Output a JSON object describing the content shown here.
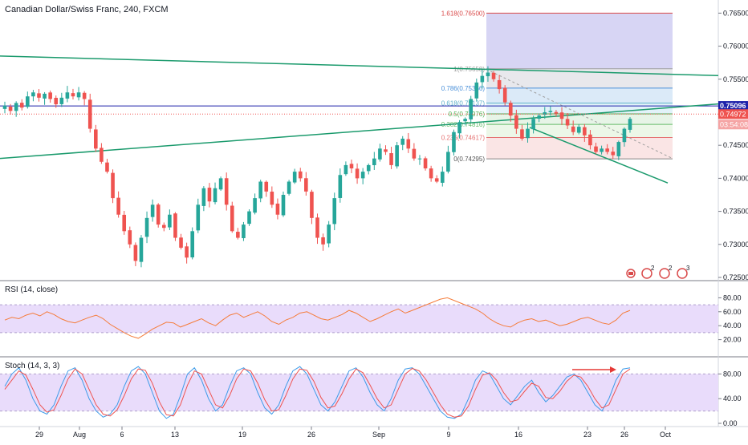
{
  "header": {
    "title": "Canadian Dollar/Swiss Franc, 240, FXCM"
  },
  "price_axis": {
    "ticks": [
      "0.76500",
      "0.76000",
      "0.75500",
      "0.75000",
      "0.74500",
      "0.74000",
      "0.73500",
      "0.73000",
      "0.72500"
    ],
    "current_price": "0.74972",
    "line_price": "0.75096",
    "countdown": "03:54:08"
  },
  "time_axis": {
    "ticks": [
      "29",
      "Aug",
      "6",
      "13",
      "19",
      "26",
      "Sep",
      "9",
      "16",
      "23",
      "26",
      "Oct"
    ]
  },
  "rsi_panel": {
    "label": "RSI (14, close)",
    "ticks": [
      "80.00",
      "60.00",
      "40.00",
      "20.00"
    ]
  },
  "stoch_panel": {
    "label": "Stoch (14, 3, 3)",
    "ticks": [
      "80.00",
      "40.00",
      "0.00"
    ]
  },
  "fib_levels": [
    {
      "label": "1.618(0.76500)"
    },
    {
      "label": "1(0.75658)"
    },
    {
      "label": "0.786(0.75366)"
    },
    {
      "label": "0.618(0.75137)"
    },
    {
      "label": "0.5(0.74976)"
    },
    {
      "label": "0.382(0.74816)"
    },
    {
      "label": "0.236(0.74617)"
    },
    {
      "label": "0(0.74295)"
    }
  ],
  "event_badges": [
    "2",
    "2",
    "3"
  ],
  "colors": {
    "up": "#26a69a",
    "down": "#ef5350",
    "blue_line": "#1e22aa",
    "trendline": "#1a9a6c",
    "rsi": "#f57c3a",
    "stoch_k": "#3d9be9",
    "stoch_d": "#ef5350",
    "panel_band": "#e9dcfb"
  },
  "chart_data": {
    "type": "candlestick",
    "instrument": "Canadian Dollar/Swiss Franc",
    "timeframe": "240",
    "ylim": [
      0.725,
      0.7665
    ],
    "fibonacci": [
      {
        "ratio": 1.618,
        "price": 0.765
      },
      {
        "ratio": 1,
        "price": 0.75658
      },
      {
        "ratio": 0.786,
        "price": 0.75366
      },
      {
        "ratio": 0.618,
        "price": 0.75137
      },
      {
        "ratio": 0.5,
        "price": 0.74976
      },
      {
        "ratio": 0.382,
        "price": 0.74816
      },
      {
        "ratio": 0.236,
        "price": 0.74617
      },
      {
        "ratio": 0,
        "price": 0.74295
      }
    ],
    "path_points": [
      [
        0.751,
        0.7502,
        0.7514,
        0.7507,
        0.7524,
        0.753,
        0.7522,
        0.7528,
        0.752,
        0.7512,
        0.7522,
        0.753,
        0.7524,
        0.753,
        0.752,
        0.7475,
        0.7445,
        0.7425,
        0.741,
        0.737,
        0.7345,
        0.732,
        0.73,
        0.7275,
        0.731,
        0.734,
        0.736,
        0.733,
        0.7325,
        0.7345,
        0.731,
        0.7295,
        0.728,
        0.732,
        0.736,
        0.7385,
        0.7365,
        0.7385,
        0.74,
        0.736,
        0.732,
        0.731,
        0.733,
        0.735,
        0.737,
        0.7395,
        0.738,
        0.736,
        0.7345,
        0.7375,
        0.7395,
        0.741,
        0.74,
        0.738,
        0.734,
        0.731,
        0.73,
        0.733,
        0.737,
        0.7405,
        0.742,
        0.7415,
        0.74,
        0.741,
        0.742,
        0.743,
        0.7445,
        0.744,
        0.742,
        0.745,
        0.746,
        0.7445,
        0.743,
        0.743,
        0.7415,
        0.74,
        0.7395,
        0.741,
        0.744,
        0.747,
        0.7485,
        0.749,
        0.752,
        0.7545,
        0.7555,
        0.756,
        0.755,
        0.7535,
        0.7515,
        0.7495,
        0.7475,
        0.746,
        0.7475,
        0.749,
        0.7495,
        0.75,
        0.7502,
        0.7498,
        0.749,
        0.748,
        0.747,
        0.7478,
        0.7465,
        0.745,
        0.744,
        0.7445,
        0.744,
        0.7435,
        0.7455,
        0.7475,
        0.749
      ]
    ],
    "rsi": {
      "ylim": [
        0,
        100
      ],
      "bands": [
        30,
        70
      ],
      "values": [
        48,
        52,
        50,
        55,
        58,
        54,
        60,
        56,
        50,
        46,
        44,
        48,
        52,
        55,
        50,
        42,
        36,
        30,
        25,
        22,
        28,
        35,
        40,
        45,
        44,
        38,
        42,
        46,
        50,
        44,
        40,
        48,
        55,
        58,
        52,
        56,
        60,
        54,
        46,
        42,
        48,
        52,
        58,
        60,
        55,
        50,
        48,
        52,
        56,
        62,
        58,
        52,
        46,
        50,
        55,
        60,
        64,
        58,
        62,
        66,
        70,
        74,
        78,
        80,
        76,
        72,
        68,
        64,
        58,
        50,
        44,
        40,
        38,
        44,
        48,
        50,
        46,
        48,
        44,
        40,
        42,
        46,
        50,
        52,
        48,
        44,
        42,
        48,
        58,
        62
      ]
    },
    "stochastic": {
      "ylim": [
        0,
        100
      ],
      "bands": [
        20,
        80
      ],
      "k": [
        60,
        80,
        90,
        70,
        40,
        20,
        15,
        30,
        60,
        85,
        90,
        70,
        40,
        20,
        10,
        15,
        30,
        60,
        85,
        92,
        80,
        50,
        20,
        8,
        15,
        45,
        80,
        90,
        70,
        40,
        20,
        30,
        60,
        85,
        90,
        80,
        50,
        25,
        15,
        30,
        60,
        85,
        92,
        80,
        55,
        30,
        20,
        35,
        60,
        85,
        90,
        75,
        50,
        30,
        20,
        40,
        70,
        88,
        90,
        80,
        60,
        40,
        20,
        10,
        8,
        15,
        40,
        70,
        85,
        80,
        60,
        40,
        30,
        45,
        60,
        70,
        50,
        35,
        45,
        60,
        75,
        80,
        70,
        50,
        30,
        20,
        40,
        70,
        88,
        90
      ],
      "d": [
        55,
        70,
        85,
        78,
        55,
        30,
        18,
        22,
        45,
        72,
        88,
        80,
        55,
        30,
        15,
        12,
        22,
        45,
        72,
        88,
        86,
        65,
        35,
        14,
        12,
        30,
        62,
        85,
        80,
        55,
        30,
        25,
        45,
        72,
        88,
        85,
        65,
        38,
        20,
        22,
        45,
        72,
        88,
        86,
        68,
        42,
        25,
        28,
        48,
        72,
        88,
        82,
        62,
        40,
        25,
        30,
        55,
        80,
        89,
        85,
        70,
        50,
        30,
        15,
        10,
        12,
        28,
        55,
        78,
        82,
        70,
        50,
        35,
        38,
        52,
        65,
        60,
        42,
        40,
        52,
        68,
        78,
        75,
        60,
        40,
        25,
        30,
        55,
        80,
        88
      ]
    }
  }
}
